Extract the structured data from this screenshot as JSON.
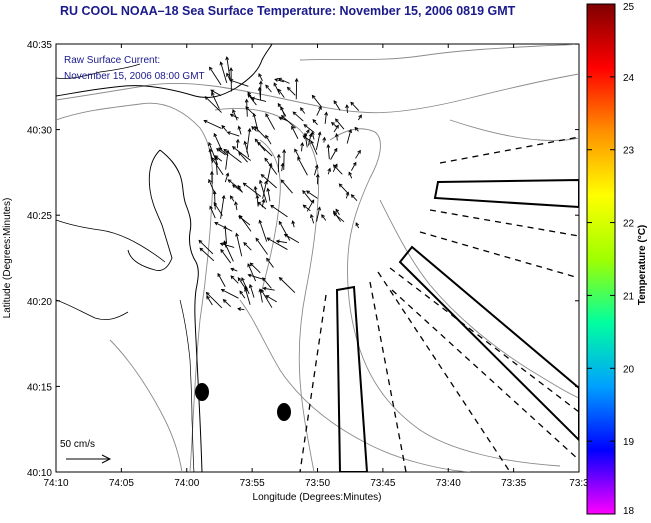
{
  "title": "RU COOL  NOAA–18  Sea Surface Temperature:  November 15, 2006 0819 GMT",
  "current_label": "Raw Surface Current:",
  "current_time": "November 15, 2006 08:00 GMT",
  "scale_label": "50 cm/s",
  "axes": {
    "xlabel": "Longitude (Degrees:Minutes)",
    "ylabel": "Latitude (Degrees:Minutes)",
    "xticks": [
      "74:10",
      "74:05",
      "74:00",
      "73:55",
      "73:50",
      "73:45",
      "73:40",
      "73:35",
      "73:3"
    ],
    "yticks": [
      "40:35",
      "40:30",
      "40:25",
      "40:20",
      "40:15",
      "40:10"
    ]
  },
  "colorbar": {
    "label": "Temperature (°C)",
    "ticks": [
      "25",
      "24",
      "23",
      "22",
      "21",
      "20",
      "19",
      "18"
    ],
    "min": 18,
    "max": 25,
    "colors": [
      "#ff00ff",
      "#0000ff",
      "#00a0ff",
      "#00ffa0",
      "#a0ff00",
      "#ffff00",
      "#ff9000",
      "#ff0000",
      "#800000"
    ]
  },
  "map_features": {
    "sst_data_visible": false,
    "radar_markers": 2
  }
}
